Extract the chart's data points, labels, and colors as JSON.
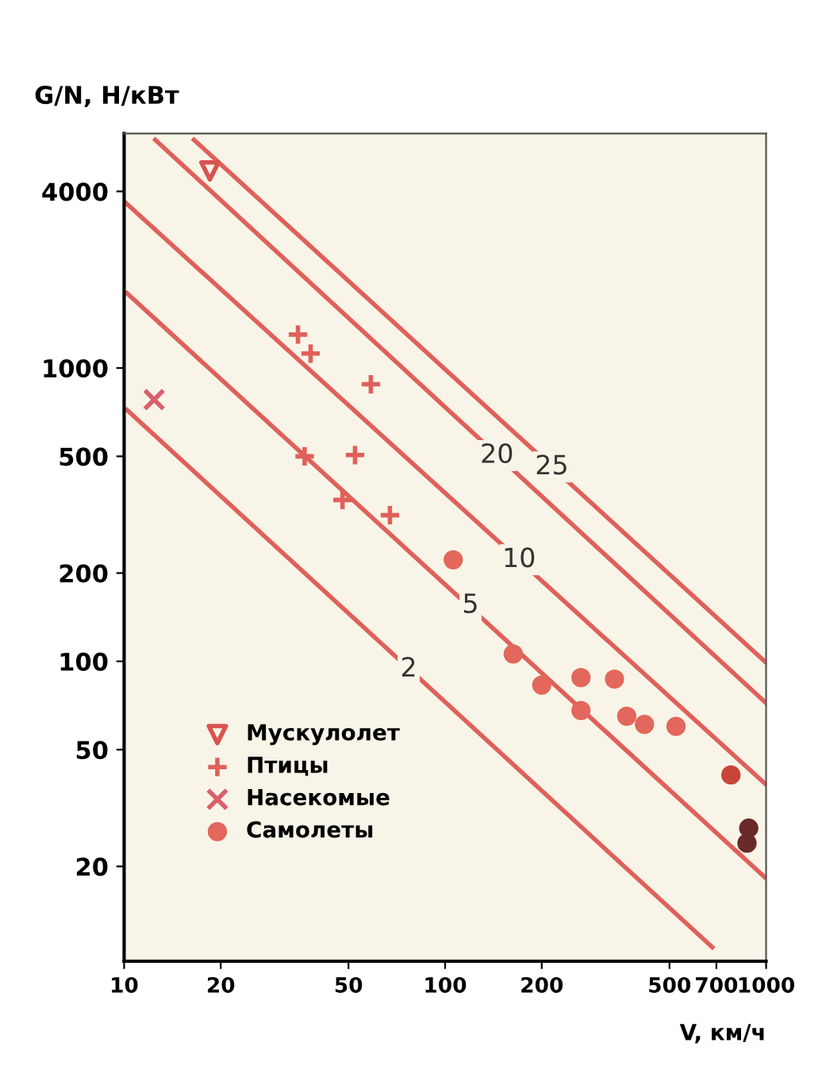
{
  "chart_data": {
    "type": "scatter",
    "xlabel": "V, км/ч",
    "ylabel": "G/N, Н/кВт",
    "log": "xy",
    "xlim": [
      10,
      1000
    ],
    "ylim": [
      9.5,
      6300
    ],
    "xticks": [
      10,
      20,
      50,
      100,
      200,
      500,
      700,
      1000
    ],
    "yticks": [
      20,
      50,
      100,
      200,
      500,
      1000,
      4000
    ],
    "grid": false,
    "legend": "bottom left",
    "series": [
      {
        "type": "line",
        "color": "#e0605a",
        "x": [
          16.5,
          1000
        ],
        "values": [
          6000,
          99
        ]
      },
      {
        "type": "line",
        "color": "#e0605a",
        "x": [
          12.5,
          1000
        ],
        "values": [
          6000,
          72
        ]
      },
      {
        "type": "line",
        "color": "#e0605a",
        "x": [
          10,
          1000
        ],
        "values": [
          3700,
          38
        ]
      },
      {
        "type": "line",
        "color": "#e0605a",
        "x": [
          10.2,
          1000
        ],
        "values": [
          1800,
          18.2
        ]
      },
      {
        "type": "line",
        "color": "#e0605a",
        "x": [
          10.2,
          680
        ],
        "values": [
          720,
          10.6
        ]
      },
      {
        "name": "Мускулолет",
        "marker": "triangle",
        "color": "#d9534f",
        "x": [
          18.5
        ],
        "values": [
          4700
        ]
      },
      {
        "name": "Птицы",
        "marker": "plus",
        "color": "#e0605a",
        "x": [
          34.8,
          38.1,
          58.7,
          36.5,
          52.4,
          47.9,
          67.3
        ],
        "values": [
          1300,
          1120,
          880,
          500,
          505,
          355,
          315
        ]
      },
      {
        "name": "Насекомые",
        "marker": "cross",
        "color": "#d9606a",
        "x": [
          12.4
        ],
        "values": [
          780
        ]
      },
      {
        "name": "Самолеты",
        "marker": "circle",
        "color": "#e3675c",
        "x": [
          106,
          163,
          200,
          265,
          265,
          337,
          368,
          418,
          524,
          777,
          883,
          872
        ],
        "values": [
          222,
          106,
          83,
          88,
          68,
          87,
          65,
          61,
          60,
          41,
          27,
          24
        ],
        "colors": [
          "#e3675c",
          "#e3675c",
          "#e3675c",
          "#e3675c",
          "#e3675c",
          "#e3675c",
          "#e3675c",
          "#e3675c",
          "#e3675c",
          "#c8453a",
          "#6b2a2a",
          "#6b2a2a"
        ]
      }
    ],
    "annotations": [
      {
        "text": "25",
        "x": 215,
        "y": 460
      },
      {
        "text": "20",
        "x": 145,
        "y": 503
      },
      {
        "text": "10",
        "x": 170,
        "y": 222
      },
      {
        "text": "5",
        "x": 120,
        "y": 155
      },
      {
        "text": "2",
        "x": 77,
        "y": 94
      }
    ]
  }
}
